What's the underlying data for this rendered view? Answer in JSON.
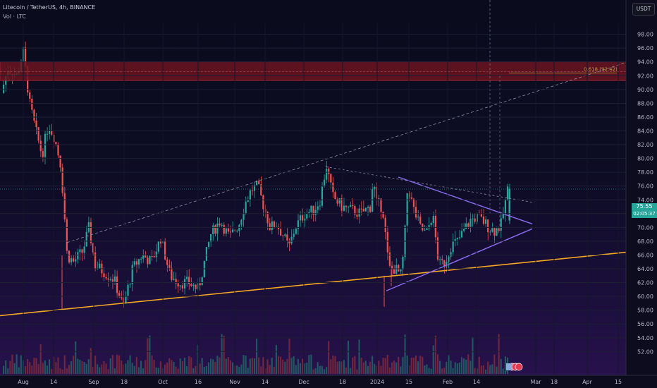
{
  "header": {
    "symbol_line": "Litecoin / TetherUS, 4h, BINANCE",
    "volume_line": "Vol · LTC"
  },
  "price_axis": {
    "currency_label": "USDT"
  },
  "chart_data": {
    "type": "candlestick",
    "y_ticks": [
      "98.00",
      "96.00",
      "94.00",
      "92.00",
      "90.00",
      "88.00",
      "86.00",
      "84.00",
      "82.00",
      "80.00",
      "78.00",
      "76.00",
      "74.00",
      "72.00",
      "70.00",
      "68.00",
      "66.00",
      "64.00",
      "62.00",
      "60.00",
      "58.00",
      "56.00",
      "54.00",
      "52.00"
    ],
    "ylim": [
      50.6,
      99.6
    ],
    "x_ticks": [
      "Aug",
      "14",
      "Sep",
      "18",
      "Oct",
      "16",
      "Nov",
      "14",
      "Dec",
      "18",
      "2024",
      "15",
      "Feb",
      "14",
      "Mar",
      "18",
      "Apr",
      "15"
    ],
    "last_price": "75.55",
    "countdown": "02:05:37",
    "annotations": {
      "fib_label": "0.618 (92.42)"
    },
    "price_path": [
      [
        0.0,
        89.5
      ],
      [
        0.01,
        93.0
      ],
      [
        0.025,
        92.0
      ],
      [
        0.035,
        95.5
      ],
      [
        0.045,
        88.0
      ],
      [
        0.055,
        84.0
      ],
      [
        0.065,
        80.5
      ],
      [
        0.075,
        85.0
      ],
      [
        0.085,
        83.0
      ],
      [
        0.095,
        79.0
      ],
      [
        0.1,
        73.0
      ],
      [
        0.105,
        66.0
      ],
      [
        0.115,
        65.0
      ],
      [
        0.13,
        66.5
      ],
      [
        0.14,
        70.0
      ],
      [
        0.15,
        64.5
      ],
      [
        0.165,
        63.5
      ],
      [
        0.18,
        62.5
      ],
      [
        0.195,
        58.5
      ],
      [
        0.21,
        64.0
      ],
      [
        0.225,
        66.0
      ],
      [
        0.24,
        65.0
      ],
      [
        0.255,
        68.5
      ],
      [
        0.27,
        63.0
      ],
      [
        0.285,
        62.0
      ],
      [
        0.3,
        62.0
      ],
      [
        0.315,
        61.0
      ],
      [
        0.325,
        65.0
      ],
      [
        0.335,
        69.0
      ],
      [
        0.35,
        71.0
      ],
      [
        0.365,
        68.5
      ],
      [
        0.38,
        70.5
      ],
      [
        0.39,
        73.5
      ],
      [
        0.4,
        75.5
      ],
      [
        0.41,
        76.0
      ],
      [
        0.42,
        73.0
      ],
      [
        0.43,
        70.0
      ],
      [
        0.44,
        70.5
      ],
      [
        0.45,
        69.0
      ],
      [
        0.46,
        67.0
      ],
      [
        0.47,
        70.0
      ],
      [
        0.485,
        72.0
      ],
      [
        0.5,
        72.5
      ],
      [
        0.51,
        74.0
      ],
      [
        0.52,
        79.0
      ],
      [
        0.53,
        74.5
      ],
      [
        0.545,
        73.0
      ],
      [
        0.56,
        72.5
      ],
      [
        0.575,
        72.0
      ],
      [
        0.59,
        73.0
      ],
      [
        0.595,
        77.0
      ],
      [
        0.6,
        73.5
      ],
      [
        0.61,
        73.0
      ],
      [
        0.62,
        64.0
      ],
      [
        0.63,
        64.0
      ],
      [
        0.64,
        63.0
      ],
      [
        0.645,
        68.0
      ],
      [
        0.65,
        76.0
      ],
      [
        0.66,
        72.5
      ],
      [
        0.67,
        70.0
      ],
      [
        0.68,
        69.0
      ],
      [
        0.69,
        72.0
      ],
      [
        0.7,
        64.5
      ],
      [
        0.71,
        65.0
      ],
      [
        0.72,
        67.5
      ],
      [
        0.73,
        68.0
      ],
      [
        0.74,
        69.5
      ],
      [
        0.75,
        71.0
      ],
      [
        0.76,
        71.5
      ],
      [
        0.77,
        71.0
      ],
      [
        0.78,
        70.0
      ],
      [
        0.79,
        69.5
      ],
      [
        0.8,
        70.5
      ],
      [
        0.81,
        75.5
      ]
    ]
  }
}
